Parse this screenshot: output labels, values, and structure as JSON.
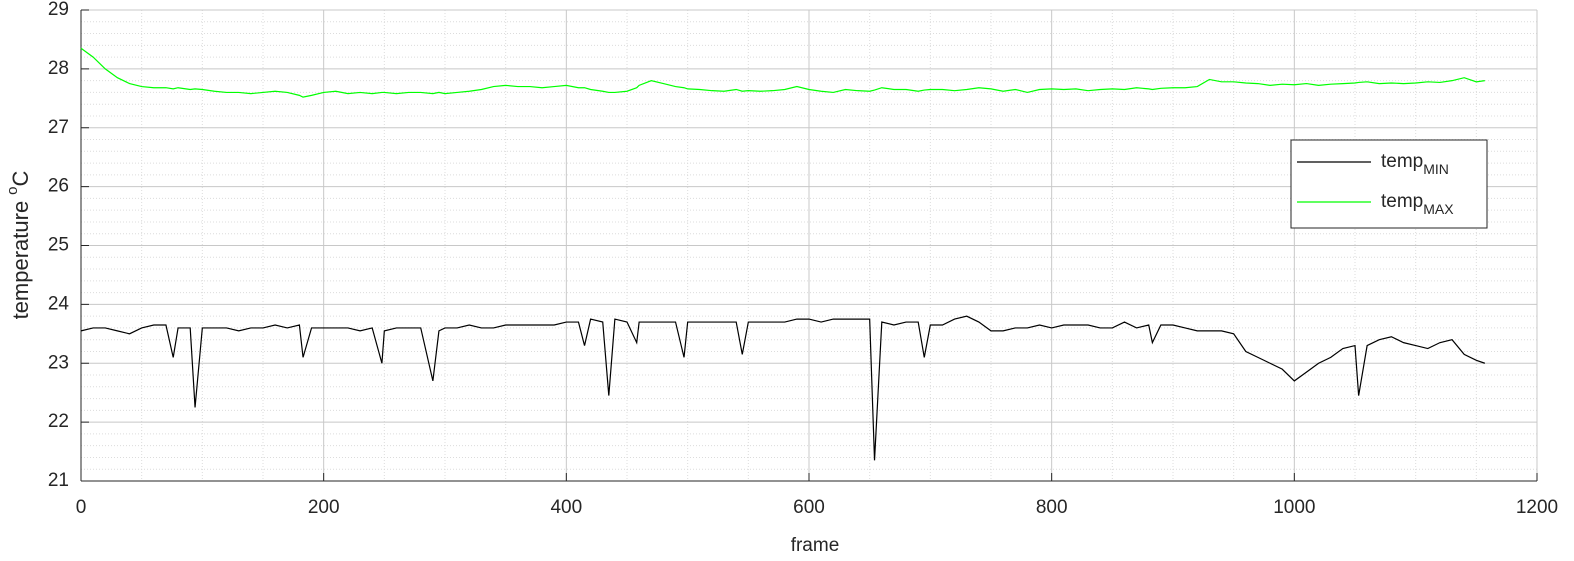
{
  "chart_data": {
    "type": "line",
    "xlabel": "frame",
    "ylabel": "temperature",
    "ylabel_superscript": "o",
    "ylabel_unit": "C",
    "xlim": [
      0,
      1200
    ],
    "xticks": [
      0,
      200,
      400,
      600,
      800,
      1000,
      1200
    ],
    "ylim": [
      21,
      29
    ],
    "yticks": [
      21,
      22,
      23,
      24,
      25,
      26,
      27,
      28,
      29
    ],
    "grid": true,
    "minor_grid": true,
    "legend": "east",
    "x": [
      0,
      10,
      20,
      30,
      40,
      50,
      60,
      70,
      76,
      80,
      90,
      94,
      100,
      110,
      120,
      130,
      140,
      150,
      160,
      170,
      180,
      183,
      190,
      200,
      210,
      220,
      230,
      240,
      248,
      250,
      260,
      270,
      280,
      290,
      295,
      300,
      310,
      320,
      330,
      340,
      350,
      360,
      370,
      380,
      390,
      400,
      410,
      415,
      420,
      430,
      435,
      440,
      450,
      458,
      460,
      470,
      480,
      490,
      497,
      500,
      510,
      520,
      530,
      540,
      545,
      550,
      560,
      570,
      580,
      590,
      600,
      610,
      620,
      630,
      640,
      650,
      654,
      660,
      670,
      680,
      690,
      695,
      700,
      710,
      720,
      730,
      740,
      750,
      760,
      770,
      780,
      790,
      800,
      810,
      820,
      830,
      840,
      850,
      860,
      870,
      880,
      883,
      890,
      900,
      910,
      920,
      930,
      940,
      950,
      960,
      970,
      980,
      990,
      1000,
      1010,
      1020,
      1030,
      1040,
      1050,
      1053,
      1060,
      1070,
      1080,
      1090,
      1100,
      1110,
      1120,
      1130,
      1140,
      1150,
      1157
    ],
    "series": [
      {
        "name": "temp",
        "subscript": "MIN",
        "color": "#000000",
        "values": [
          23.55,
          23.6,
          23.6,
          23.55,
          23.5,
          23.6,
          23.65,
          23.65,
          23.1,
          23.6,
          23.6,
          22.25,
          23.6,
          23.6,
          23.6,
          23.55,
          23.6,
          23.6,
          23.65,
          23.6,
          23.65,
          23.1,
          23.6,
          23.6,
          23.6,
          23.6,
          23.55,
          23.6,
          23.0,
          23.55,
          23.6,
          23.6,
          23.6,
          22.7,
          23.55,
          23.6,
          23.6,
          23.65,
          23.6,
          23.6,
          23.65,
          23.65,
          23.65,
          23.65,
          23.65,
          23.7,
          23.7,
          23.3,
          23.75,
          23.7,
          22.45,
          23.75,
          23.7,
          23.35,
          23.7,
          23.7,
          23.7,
          23.7,
          23.1,
          23.7,
          23.7,
          23.7,
          23.7,
          23.7,
          23.15,
          23.7,
          23.7,
          23.7,
          23.7,
          23.75,
          23.75,
          23.7,
          23.75,
          23.75,
          23.75,
          23.75,
          21.35,
          23.7,
          23.65,
          23.7,
          23.7,
          23.1,
          23.65,
          23.65,
          23.75,
          23.8,
          23.7,
          23.55,
          23.55,
          23.6,
          23.6,
          23.65,
          23.6,
          23.65,
          23.65,
          23.65,
          23.6,
          23.6,
          23.7,
          23.6,
          23.65,
          23.35,
          23.65,
          23.65,
          23.6,
          23.55,
          23.55,
          23.55,
          23.5,
          23.2,
          23.1,
          23.0,
          22.9,
          22.7,
          22.85,
          23.0,
          23.1,
          23.25,
          23.3,
          22.45,
          23.3,
          23.4,
          23.45,
          23.35,
          23.3,
          23.25,
          23.35,
          23.4,
          23.15,
          23.05,
          23.0
        ]
      },
      {
        "name": "temp",
        "subscript": "MAX",
        "color": "#00ff00",
        "values": [
          28.35,
          28.2,
          28.0,
          27.85,
          27.75,
          27.7,
          27.68,
          27.68,
          27.66,
          27.68,
          27.65,
          27.66,
          27.65,
          27.62,
          27.6,
          27.6,
          27.58,
          27.6,
          27.62,
          27.6,
          27.55,
          27.52,
          27.55,
          27.6,
          27.62,
          27.58,
          27.6,
          27.58,
          27.6,
          27.6,
          27.58,
          27.6,
          27.6,
          27.58,
          27.6,
          27.58,
          27.6,
          27.62,
          27.65,
          27.7,
          27.72,
          27.7,
          27.7,
          27.68,
          27.7,
          27.72,
          27.68,
          27.68,
          27.65,
          27.62,
          27.6,
          27.6,
          27.62,
          27.68,
          27.72,
          27.8,
          27.75,
          27.7,
          27.68,
          27.66,
          27.65,
          27.63,
          27.62,
          27.65,
          27.62,
          27.63,
          27.62,
          27.63,
          27.65,
          27.7,
          27.65,
          27.62,
          27.6,
          27.65,
          27.63,
          27.62,
          27.64,
          27.68,
          27.65,
          27.65,
          27.62,
          27.64,
          27.65,
          27.65,
          27.63,
          27.65,
          27.68,
          27.66,
          27.62,
          27.65,
          27.6,
          27.65,
          27.66,
          27.65,
          27.66,
          27.63,
          27.65,
          27.66,
          27.65,
          27.68,
          27.66,
          27.65,
          27.67,
          27.68,
          27.68,
          27.7,
          27.82,
          27.78,
          27.78,
          27.76,
          27.75,
          27.72,
          27.74,
          27.73,
          27.75,
          27.72,
          27.74,
          27.75,
          27.76,
          27.77,
          27.78,
          27.75,
          27.76,
          27.75,
          27.76,
          27.78,
          27.77,
          27.8,
          27.85,
          27.78,
          27.8
        ]
      }
    ]
  }
}
